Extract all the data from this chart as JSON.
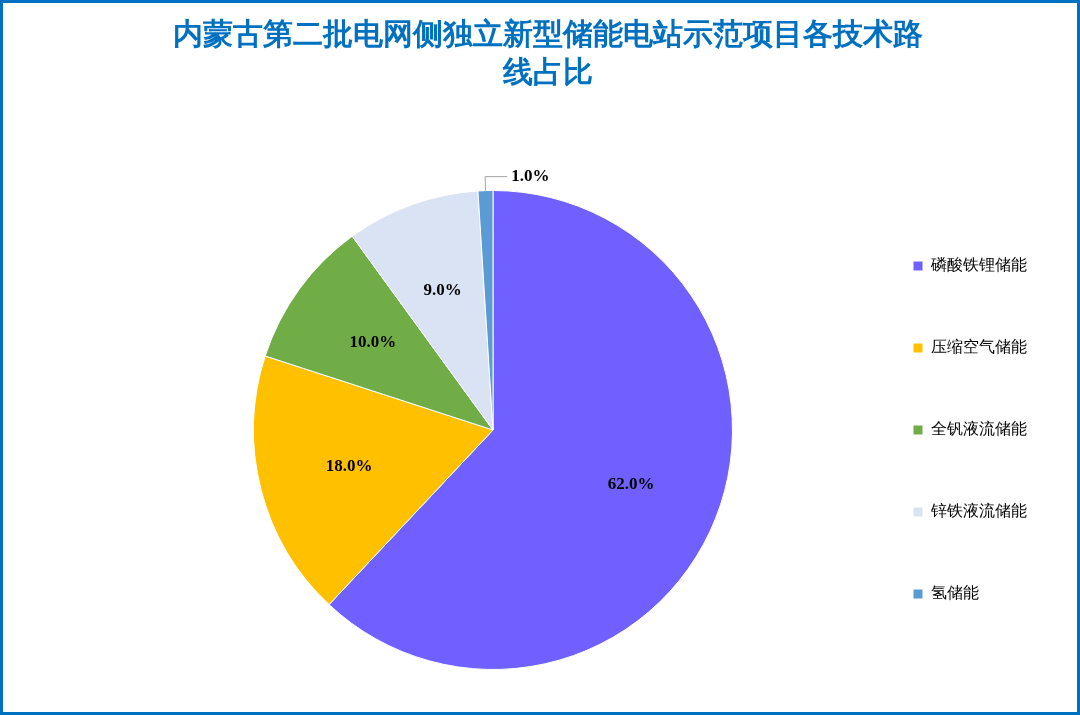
{
  "chart_data": {
    "type": "pie",
    "title": "内蒙古第二批电网侧独立新型储能电站示范项目各技术路线占比",
    "categories": [
      "磷酸铁锂储能",
      "压缩空气储能",
      "全钒液流储能",
      "锌铁液流储能",
      "氢储能"
    ],
    "values": [
      62,
      18,
      10,
      9,
      1
    ],
    "colors": [
      "#7060ff",
      "#ffc000",
      "#70ad47",
      "#dae3f3",
      "#5b9bd5"
    ],
    "value_labels": [
      "62.0%",
      "18.0%",
      "10.0%",
      "9.0%",
      "1.0%"
    ],
    "legend": "right"
  }
}
